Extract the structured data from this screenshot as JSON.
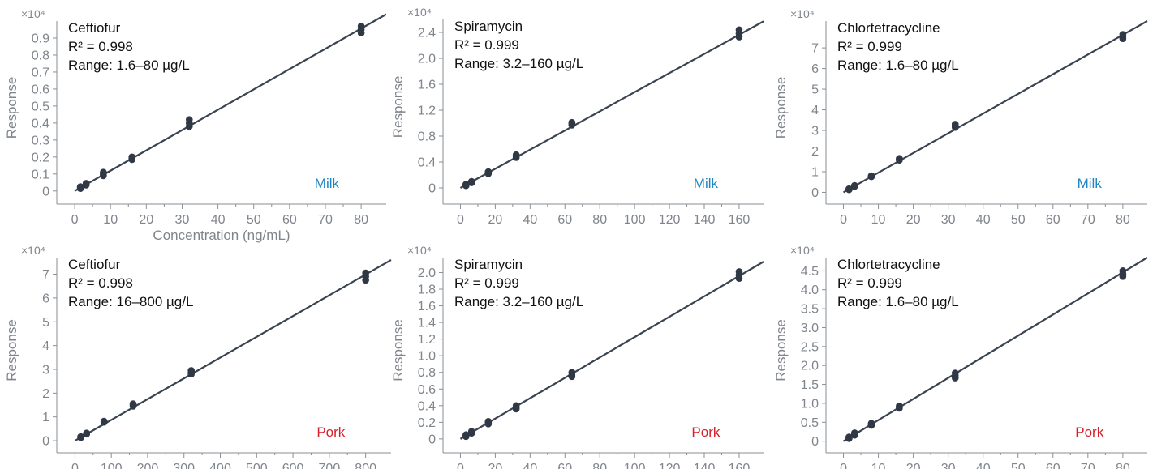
{
  "styles": {
    "line_color": "#3a4350",
    "point_color": "#2f3844",
    "axis_color": "#8a8f96",
    "tick_text_color": "#80858c",
    "label_color": "#111111",
    "milk_color": "#1f86c6",
    "pork_color": "#d61f2a"
  },
  "chart_data": [
    {
      "type": "scatter",
      "id": "ceftiofur-milk",
      "title": "Ceftiofur",
      "r2": "R² = 0.998",
      "range": "Range: 1.6–80 µg/L",
      "matrix": "Milk",
      "multiplier": "×10⁴",
      "xlabel": "Concentration (ng/mL)",
      "ylabel": "Response",
      "xlim": [
        -5,
        87
      ],
      "ylim": [
        -0.02,
        1.0
      ],
      "xticks": [
        0,
        10,
        20,
        30,
        40,
        50,
        60,
        70,
        80
      ],
      "yticks": [
        0,
        0.1,
        0.2,
        0.3,
        0.4,
        0.5,
        0.6,
        0.7,
        0.8,
        0.9
      ],
      "ytick_labels": [
        "0",
        "0.1",
        "0.2",
        "0.3",
        "0.4",
        "0.5",
        "0.6",
        "0.7",
        "0.8",
        "0.9"
      ],
      "fit": {
        "x": [
          0,
          87
        ],
        "y": [
          0.0,
          1.04
        ]
      },
      "x": [
        1.6,
        1.6,
        1.6,
        3.2,
        3.2,
        3.2,
        8,
        8,
        8,
        16,
        16,
        16,
        32,
        32,
        32,
        80,
        80,
        80
      ],
      "y": [
        0.015,
        0.02,
        0.025,
        0.035,
        0.04,
        0.045,
        0.09,
        0.1,
        0.11,
        0.185,
        0.19,
        0.2,
        0.38,
        0.4,
        0.42,
        0.93,
        0.95,
        0.97
      ]
    },
    {
      "type": "scatter",
      "id": "spiramycin-milk",
      "title": "Spiramycin",
      "r2": "R² = 0.999",
      "range": "Range: 3.2–160 µg/L",
      "matrix": "Milk",
      "multiplier": "×10⁴",
      "xlabel": "",
      "ylabel": "Response",
      "xlim": [
        -10,
        174
      ],
      "ylim": [
        -0.1,
        2.6
      ],
      "xticks": [
        0,
        20,
        40,
        60,
        80,
        100,
        120,
        140,
        160
      ],
      "yticks": [
        0,
        0.4,
        0.8,
        1.2,
        1.6,
        2.0,
        2.4
      ],
      "ytick_labels": [
        "0",
        "0.4",
        "0.8",
        "1.2",
        "1.6",
        "2.0",
        "2.4"
      ],
      "fit": {
        "x": [
          0,
          174
        ],
        "y": [
          0.0,
          2.57
        ]
      },
      "x": [
        3.2,
        3.2,
        3.2,
        6.4,
        6.4,
        6.4,
        16,
        16,
        16,
        32,
        32,
        32,
        64,
        64,
        64,
        160,
        160,
        160
      ],
      "y": [
        0.035,
        0.045,
        0.055,
        0.08,
        0.09,
        0.1,
        0.22,
        0.24,
        0.25,
        0.47,
        0.49,
        0.51,
        0.97,
        0.99,
        1.01,
        2.33,
        2.38,
        2.44
      ]
    },
    {
      "type": "scatter",
      "id": "chlortetracycline-milk",
      "title": "Chlortetracycline",
      "r2": "R² = 0.999",
      "range": "Range: 1.6–80 µg/L",
      "matrix": "Milk",
      "multiplier": "×10⁴",
      "xlabel": "",
      "ylabel": "Response",
      "xlim": [
        -5,
        87
      ],
      "ylim": [
        -0.1,
        8.3
      ],
      "xticks": [
        0,
        10,
        20,
        30,
        40,
        50,
        60,
        70,
        80
      ],
      "yticks": [
        0,
        1,
        2,
        3,
        4,
        5,
        6,
        7
      ],
      "ytick_labels": [
        "0",
        "1",
        "2",
        "3",
        "4",
        "5",
        "6",
        "7"
      ],
      "fit": {
        "x": [
          0,
          87
        ],
        "y": [
          0.0,
          8.3
        ]
      },
      "x": [
        1.6,
        1.6,
        1.6,
        3.2,
        3.2,
        3.2,
        8,
        8,
        8,
        16,
        16,
        16,
        32,
        32,
        32,
        80,
        80,
        80
      ],
      "y": [
        0.13,
        0.15,
        0.17,
        0.29,
        0.31,
        0.33,
        0.76,
        0.78,
        0.8,
        1.56,
        1.6,
        1.64,
        3.15,
        3.22,
        3.3,
        7.45,
        7.55,
        7.65
      ]
    },
    {
      "type": "scatter",
      "id": "ceftiofur-pork",
      "title": "Ceftiofur",
      "r2": "R² = 0.998",
      "range": "Range: 16–800 µg/L",
      "matrix": "Pork",
      "multiplier": "×10⁴",
      "xlabel": "",
      "ylabel": "Response",
      "xlim": [
        -50,
        870
      ],
      "ylim": [
        -0.1,
        7.7
      ],
      "xticks": [
        0,
        100,
        200,
        300,
        400,
        500,
        600,
        700,
        800
      ],
      "yticks": [
        0,
        1,
        2,
        3,
        4,
        5,
        6,
        7
      ],
      "ytick_labels": [
        "0",
        "1",
        "2",
        "3",
        "4",
        "5",
        "6",
        "7"
      ],
      "fit": {
        "x": [
          0,
          870
        ],
        "y": [
          0.0,
          7.6
        ]
      },
      "x": [
        16,
        16,
        16,
        32,
        32,
        32,
        80,
        80,
        80,
        160,
        160,
        160,
        320,
        320,
        320,
        800,
        800,
        800
      ],
      "y": [
        0.13,
        0.15,
        0.17,
        0.28,
        0.3,
        0.32,
        0.78,
        0.8,
        0.82,
        1.45,
        1.5,
        1.55,
        2.8,
        2.87,
        2.95,
        6.75,
        6.9,
        7.05
      ]
    },
    {
      "type": "scatter",
      "id": "spiramycin-pork",
      "title": "Spiramycin",
      "r2": "R² = 0.999",
      "range": "Range: 3.2–160 µg/L",
      "matrix": "Pork",
      "multiplier": "×10⁴",
      "xlabel": "",
      "ylabel": "Response",
      "xlim": [
        -10,
        174
      ],
      "ylim": [
        -0.05,
        2.18
      ],
      "xticks": [
        0,
        20,
        40,
        60,
        80,
        100,
        120,
        140,
        160
      ],
      "yticks": [
        0,
        0.2,
        0.4,
        0.6,
        0.8,
        1.0,
        1.2,
        1.4,
        1.6,
        1.8,
        2.0
      ],
      "ytick_labels": [
        "0",
        "0.2",
        "0.4",
        "0.6",
        "0.8",
        "1.0",
        "1.2",
        "1.4",
        "1.6",
        "1.8",
        "2.0"
      ],
      "fit": {
        "x": [
          0,
          174
        ],
        "y": [
          0.0,
          2.13
        ]
      },
      "x": [
        3.2,
        3.2,
        3.2,
        6.4,
        6.4,
        6.4,
        16,
        16,
        16,
        32,
        32,
        32,
        64,
        64,
        64,
        160,
        160,
        160
      ],
      "y": [
        0.03,
        0.04,
        0.05,
        0.07,
        0.08,
        0.09,
        0.18,
        0.19,
        0.21,
        0.36,
        0.38,
        0.4,
        0.75,
        0.77,
        0.8,
        1.93,
        1.97,
        2.01
      ]
    },
    {
      "type": "scatter",
      "id": "chlortetracycline-pork",
      "title": "Chlortetracycline",
      "r2": "R² = 0.999",
      "range": "Range: 1.6–80 µg/L",
      "matrix": "Pork",
      "multiplier": "×10⁴",
      "xlabel": "",
      "ylabel": "Response",
      "xlim": [
        -5,
        87
      ],
      "ylim": [
        -0.05,
        4.85
      ],
      "xticks": [
        0,
        10,
        20,
        30,
        40,
        50,
        60,
        70,
        80
      ],
      "yticks": [
        0,
        0.5,
        1.0,
        1.5,
        2.0,
        2.5,
        3.0,
        3.5,
        4.0,
        4.5
      ],
      "ytick_labels": [
        "0",
        "0.5",
        "1.0",
        "1.5",
        "2.0",
        "2.5",
        "3.0",
        "3.5",
        "4.0",
        "4.5"
      ],
      "fit": {
        "x": [
          0,
          87
        ],
        "y": [
          0.0,
          4.85
        ]
      },
      "x": [
        1.6,
        1.6,
        1.6,
        3.2,
        3.2,
        3.2,
        8,
        8,
        8,
        16,
        16,
        16,
        32,
        32,
        32,
        80,
        80,
        80
      ],
      "y": [
        0.07,
        0.09,
        0.11,
        0.16,
        0.19,
        0.22,
        0.42,
        0.44,
        0.47,
        0.87,
        0.9,
        0.93,
        1.67,
        1.73,
        1.8,
        4.35,
        4.42,
        4.5
      ]
    }
  ]
}
